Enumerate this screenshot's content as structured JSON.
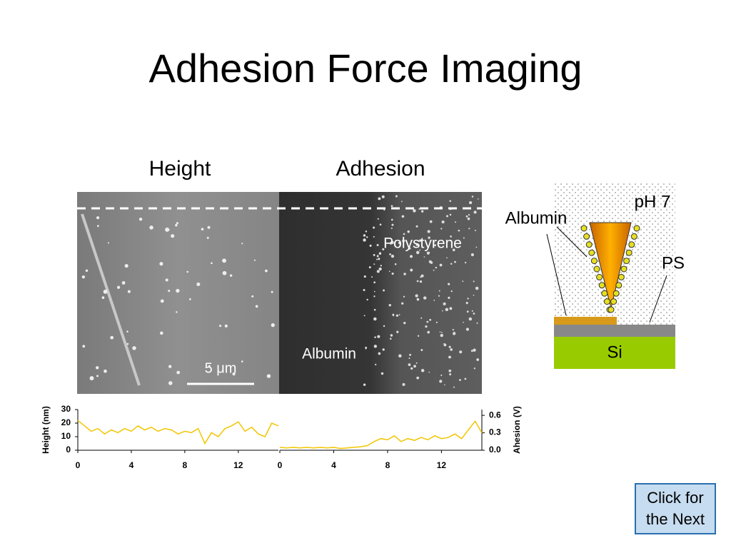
{
  "title": "Adhesion Force Imaging",
  "images": {
    "height_label": "Height",
    "adhesion_label": "Adhesion",
    "polystyrene_label": "Polystyrene",
    "albumin_label": "Albumin",
    "scale_bar_label": "5 μm"
  },
  "diagram": {
    "ph_label": "pH 7",
    "albumin_label": "Albumin",
    "ps_label": "PS",
    "si_label": "Si"
  },
  "button": {
    "lines": [
      "Click for",
      "the Next"
    ]
  },
  "chart_data": [
    {
      "type": "line",
      "y_label": "Height (nm)",
      "y_axis_side": "left",
      "x": [
        0,
        0.5,
        1,
        1.5,
        2,
        2.5,
        3,
        3.5,
        4,
        4.5,
        5,
        5.5,
        6,
        6.5,
        7,
        7.5,
        8,
        8.5,
        9,
        9.5,
        10,
        10.5,
        11,
        11.5,
        12,
        12.5,
        13,
        13.5,
        14,
        14.5,
        15
      ],
      "series": [
        {
          "color": "#f2c500",
          "values": [
            22,
            18,
            14,
            16,
            12,
            15,
            13,
            16,
            14,
            18,
            15,
            17,
            14,
            16,
            15,
            12,
            14,
            13,
            16,
            5,
            13,
            10,
            16,
            18,
            21,
            14,
            17,
            12,
            10,
            20,
            18
          ]
        }
      ],
      "xlim": [
        0,
        15
      ],
      "xticks": [
        0,
        4,
        8,
        12
      ],
      "ylim": [
        0,
        30
      ],
      "yticks": [
        0,
        10,
        20,
        30
      ]
    },
    {
      "type": "line",
      "y_label": "Ahesion (V)",
      "y_axis_side": "right",
      "x": [
        0,
        0.5,
        1,
        1.5,
        2,
        2.5,
        3,
        3.5,
        4,
        4.5,
        5,
        5.5,
        6,
        6.5,
        7,
        7.5,
        8,
        8.5,
        9,
        9.5,
        10,
        10.5,
        11,
        11.5,
        12,
        12.5,
        13,
        13.5,
        14,
        14.5,
        15
      ],
      "series": [
        {
          "color": "#f2c500",
          "values": [
            0.05,
            0.04,
            0.05,
            0.04,
            0.05,
            0.04,
            0.05,
            0.04,
            0.05,
            0.03,
            0.04,
            0.05,
            0.06,
            0.08,
            0.15,
            0.2,
            0.18,
            0.25,
            0.15,
            0.2,
            0.17,
            0.22,
            0.18,
            0.25,
            0.2,
            0.22,
            0.28,
            0.2,
            0.35,
            0.5,
            0.3
          ]
        }
      ],
      "xlim": [
        0,
        15
      ],
      "xticks": [
        0,
        4,
        8,
        12
      ],
      "ylim": [
        0,
        0.7
      ],
      "yticks": [
        {
          "value": 0,
          "label": "0.0"
        },
        0.3,
        0.6
      ]
    }
  ]
}
